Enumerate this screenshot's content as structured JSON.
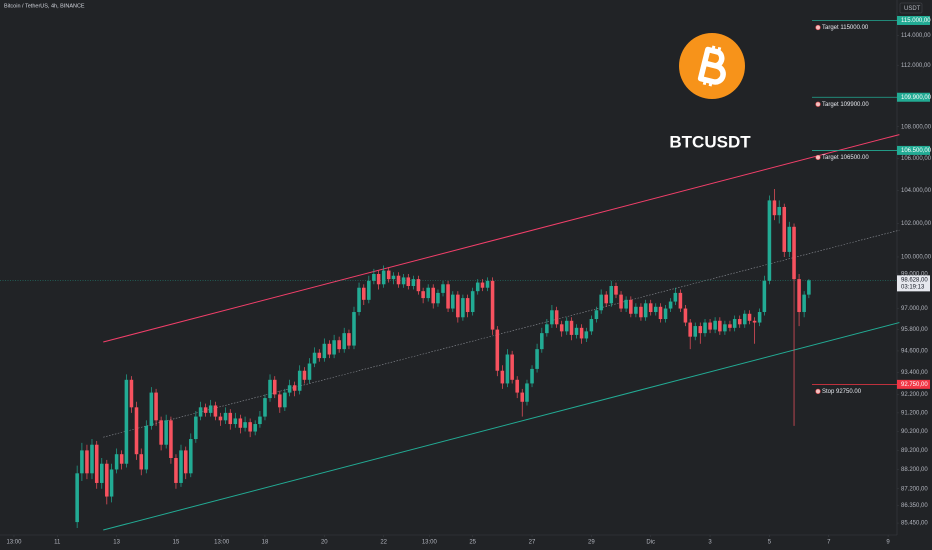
{
  "chart_data": {
    "type": "candlestick",
    "title": "Bitcoin / TetherUS, 4h, BINANCE",
    "currency": "USDT",
    "symbol": "BTCUSDT",
    "log_scale": true,
    "grid": false,
    "up_color": "#22ab94",
    "down_color": "#f7525f",
    "xlim": [
      9.07,
      39.3
    ],
    "ylim": [
      84850,
      116400
    ],
    "xticks": [
      {
        "value": 9.54,
        "label": "13:00"
      },
      11,
      13,
      15,
      {
        "value": 16.54,
        "label": "13:00"
      },
      18,
      20,
      22,
      {
        "value": 23.54,
        "label": "13:00"
      },
      25,
      27,
      29,
      {
        "value": 31,
        "label": "Dic"
      },
      {
        "value": 33,
        "label": "3"
      },
      {
        "value": 35,
        "label": "5"
      },
      {
        "value": 37,
        "label": "7"
      },
      {
        "value": 39,
        "label": "9"
      }
    ],
    "yticks": [
      {
        "value": 114000,
        "label": "114.000,00"
      },
      {
        "value": 112000,
        "label": "112.000,00"
      },
      {
        "value": 108000,
        "label": "108.000,00"
      },
      {
        "value": 106000,
        "label": "106.000,00"
      },
      {
        "value": 104000,
        "label": "104.000,00"
      },
      {
        "value": 102000,
        "label": "102.000,00"
      },
      {
        "value": 100000,
        "label": "100.000,00"
      },
      {
        "value": 99000,
        "label": "99.000,00"
      },
      {
        "value": 97000,
        "label": "97.000,00"
      },
      {
        "value": 95800,
        "label": "95.800,00"
      },
      {
        "value": 94600,
        "label": "94.600,00"
      },
      {
        "value": 93400,
        "label": "93.400,00"
      },
      {
        "value": 92200,
        "label": "92.200,00"
      },
      {
        "value": 91200,
        "label": "91.200,00"
      },
      {
        "value": 90200,
        "label": "90.200,00"
      },
      {
        "value": 89200,
        "label": "89.200,00"
      },
      {
        "value": 88200,
        "label": "88.200,00"
      },
      {
        "value": 87200,
        "label": "87.200,00"
      },
      {
        "value": 86350,
        "label": "86.350,00"
      },
      {
        "value": 85450,
        "label": "85.450,00"
      }
    ],
    "last_price": {
      "value": 98628,
      "label": "98.628,00",
      "countdown": "03:19:13",
      "color": "#22ab94"
    },
    "levels": [
      {
        "name": "Target 115000.00",
        "value": 115000,
        "axis_label": "115.000,00",
        "color": "#22ab94"
      },
      {
        "name": "Target 109900.00",
        "value": 109900,
        "axis_label": "109.900,00",
        "color": "#22ab94"
      },
      {
        "name": "Target 106500.00",
        "value": 106500,
        "axis_label": "106.500,00",
        "color": "#22ab94"
      },
      {
        "name": "Stop 92750.00",
        "value": 92750,
        "axis_label": "92.750,00",
        "color": "#f23645"
      }
    ],
    "trendlines": [
      {
        "color": "#f23f6a",
        "dash": false,
        "x": [
          12.55,
          39.38
        ],
        "y": [
          95100,
          107500
        ]
      },
      {
        "color": "#8a8d94",
        "dash": true,
        "x": [
          12.55,
          39.38
        ],
        "y": [
          89900,
          101600
        ]
      },
      {
        "color": "#22ab94",
        "dash": false,
        "x": [
          12.55,
          39.38
        ],
        "y": [
          85100,
          96200
        ]
      }
    ],
    "candles": [
      [
        11.67,
        85500,
        88400,
        85200,
        88000
      ],
      [
        11.83,
        88000,
        89600,
        87600,
        89200
      ],
      [
        12,
        89200,
        89500,
        87700,
        88000
      ],
      [
        12.17,
        88000,
        89800,
        87700,
        89500
      ],
      [
        12.33,
        89500,
        89700,
        87200,
        87500
      ],
      [
        12.5,
        87500,
        88800,
        87200,
        88500
      ],
      [
        12.67,
        88500,
        88700,
        86400,
        86800
      ],
      [
        12.83,
        86800,
        88500,
        86500,
        88200
      ],
      [
        13,
        88200,
        89300,
        88000,
        89000
      ],
      [
        13.17,
        89000,
        89200,
        88200,
        88500
      ],
      [
        13.33,
        88500,
        93300,
        88300,
        93000
      ],
      [
        13.5,
        93000,
        93200,
        91200,
        91500
      ],
      [
        13.67,
        91500,
        91800,
        88700,
        89000
      ],
      [
        13.83,
        89000,
        89300,
        87900,
        88200
      ],
      [
        14,
        88200,
        90800,
        88000,
        90500
      ],
      [
        14.17,
        90500,
        92600,
        90300,
        92300
      ],
      [
        14.33,
        92300,
        92500,
        90500,
        90800
      ],
      [
        14.5,
        90800,
        91000,
        89200,
        89500
      ],
      [
        14.67,
        89500,
        91100,
        89300,
        90800
      ],
      [
        14.83,
        90800,
        91000,
        88500,
        88800
      ],
      [
        15,
        88800,
        89000,
        87200,
        87500
      ],
      [
        15.17,
        87500,
        89500,
        87300,
        89200
      ],
      [
        15.33,
        89200,
        89400,
        87700,
        88000
      ],
      [
        15.5,
        88000,
        90100,
        87800,
        89800
      ],
      [
        15.67,
        89800,
        91300,
        89600,
        91000
      ],
      [
        15.83,
        91000,
        91800,
        90800,
        91500
      ],
      [
        16,
        91500,
        91700,
        91000,
        91200
      ],
      [
        16.17,
        91200,
        91900,
        91000,
        91600
      ],
      [
        16.33,
        91600,
        91800,
        90800,
        91000
      ],
      [
        16.5,
        91000,
        91200,
        90500,
        90800
      ],
      [
        16.67,
        90800,
        91500,
        90600,
        91200
      ],
      [
        16.83,
        91200,
        91400,
        90300,
        90600
      ],
      [
        17,
        90600,
        91200,
        90400,
        90900
      ],
      [
        17.17,
        90900,
        91100,
        90100,
        90400
      ],
      [
        17.33,
        90400,
        91000,
        90200,
        90700
      ],
      [
        17.5,
        90700,
        90900,
        89900,
        90200
      ],
      [
        17.67,
        90200,
        90800,
        90000,
        90600
      ],
      [
        17.83,
        90600,
        91300,
        90400,
        91000
      ],
      [
        18,
        91000,
        92200,
        90800,
        92000
      ],
      [
        18.17,
        92000,
        93300,
        91800,
        93000
      ],
      [
        18.33,
        93000,
        93200,
        92000,
        92200
      ],
      [
        18.5,
        92200,
        92400,
        91200,
        91500
      ],
      [
        18.67,
        91500,
        92500,
        91300,
        92300
      ],
      [
        18.83,
        92300,
        93000,
        92100,
        92700
      ],
      [
        19,
        92700,
        92900,
        92100,
        92400
      ],
      [
        19.17,
        92400,
        93800,
        92200,
        93500
      ],
      [
        19.33,
        93500,
        93700,
        92800,
        93000
      ],
      [
        19.5,
        93000,
        94200,
        92800,
        93900
      ],
      [
        19.67,
        93900,
        94800,
        93700,
        94500
      ],
      [
        19.83,
        94500,
        94700,
        94000,
        94200
      ],
      [
        20,
        94200,
        95300,
        94000,
        95000
      ],
      [
        20.17,
        95000,
        95200,
        94200,
        94400
      ],
      [
        20.33,
        94400,
        95500,
        94200,
        95200
      ],
      [
        20.5,
        95200,
        95400,
        94500,
        94700
      ],
      [
        20.67,
        94700,
        95900,
        94500,
        95600
      ],
      [
        20.83,
        95600,
        95800,
        94700,
        94900
      ],
      [
        21,
        94900,
        97100,
        94700,
        96800
      ],
      [
        21.17,
        96800,
        98500,
        96600,
        98200
      ],
      [
        21.33,
        98200,
        98400,
        97200,
        97500
      ],
      [
        21.5,
        97500,
        98900,
        97300,
        98600
      ],
      [
        21.67,
        98600,
        99300,
        98400,
        99000
      ],
      [
        21.83,
        99000,
        99200,
        98100,
        98400
      ],
      [
        22,
        98400,
        99500,
        98200,
        99200
      ],
      [
        22.17,
        99200,
        99400,
        98500,
        98700
      ],
      [
        22.33,
        98700,
        99100,
        98400,
        98900
      ],
      [
        22.5,
        98900,
        99100,
        98200,
        98400
      ],
      [
        22.67,
        98400,
        99000,
        98200,
        98800
      ],
      [
        22.83,
        98800,
        99000,
        98100,
        98300
      ],
      [
        23,
        98300,
        98900,
        98100,
        98700
      ],
      [
        23.17,
        98700,
        98900,
        97800,
        98000
      ],
      [
        23.33,
        98000,
        98200,
        97300,
        97600
      ],
      [
        23.5,
        97600,
        98400,
        97400,
        98200
      ],
      [
        23.67,
        98200,
        98400,
        97000,
        97300
      ],
      [
        23.83,
        97300,
        98100,
        97100,
        97900
      ],
      [
        24,
        97900,
        98600,
        97700,
        98400
      ],
      [
        24.17,
        98400,
        98600,
        96800,
        97000
      ],
      [
        24.33,
        97000,
        98000,
        96800,
        97800
      ],
      [
        24.5,
        97800,
        98000,
        96200,
        96500
      ],
      [
        24.67,
        96500,
        97800,
        96300,
        97600
      ],
      [
        24.83,
        97600,
        97800,
        96500,
        96800
      ],
      [
        25,
        96800,
        98200,
        96600,
        98000
      ],
      [
        25.17,
        98000,
        98700,
        97800,
        98500
      ],
      [
        25.33,
        98500,
        98700,
        98000,
        98200
      ],
      [
        25.5,
        98200,
        98800,
        98000,
        98600
      ],
      [
        25.67,
        98600,
        98800,
        95500,
        95800
      ],
      [
        25.83,
        95800,
        96000,
        93200,
        93500
      ],
      [
        26,
        93500,
        93800,
        92500,
        92800
      ],
      [
        26.17,
        92800,
        94700,
        92600,
        94400
      ],
      [
        26.33,
        94400,
        94600,
        92800,
        93000
      ],
      [
        26.5,
        93000,
        93200,
        92000,
        92300
      ],
      [
        26.67,
        92300,
        92500,
        91000,
        91800
      ],
      [
        26.83,
        91800,
        93000,
        91600,
        92800
      ],
      [
        27,
        92800,
        93800,
        92600,
        93600
      ],
      [
        27.17,
        93600,
        95000,
        93400,
        94700
      ],
      [
        27.33,
        94700,
        95900,
        94500,
        95600
      ],
      [
        27.5,
        95600,
        96400,
        95400,
        96100
      ],
      [
        27.67,
        96100,
        97200,
        95900,
        96900
      ],
      [
        27.83,
        96900,
        97100,
        95900,
        96100
      ],
      [
        28,
        96100,
        96300,
        95400,
        95700
      ],
      [
        28.17,
        95700,
        96500,
        95500,
        96300
      ],
      [
        28.33,
        96300,
        96500,
        95200,
        95500
      ],
      [
        28.5,
        95500,
        96100,
        95300,
        95900
      ],
      [
        28.67,
        95900,
        96100,
        95000,
        95300
      ],
      [
        28.83,
        95300,
        95900,
        95100,
        95700
      ],
      [
        29,
        95700,
        96600,
        95500,
        96400
      ],
      [
        29.17,
        96400,
        97100,
        96200,
        96900
      ],
      [
        29.33,
        96900,
        98100,
        96700,
        97800
      ],
      [
        29.5,
        97800,
        98000,
        97100,
        97300
      ],
      [
        29.67,
        97300,
        98600,
        97100,
        98300
      ],
      [
        29.83,
        98300,
        98500,
        97600,
        97800
      ],
      [
        30,
        97800,
        98000,
        96800,
        97000
      ],
      [
        30.17,
        97000,
        97700,
        96800,
        97500
      ],
      [
        30.33,
        97500,
        97700,
        96500,
        96700
      ],
      [
        30.5,
        96700,
        97300,
        96500,
        97100
      ],
      [
        30.67,
        97100,
        97300,
        96300,
        96500
      ],
      [
        30.83,
        96500,
        97500,
        96300,
        97300
      ],
      [
        31,
        97300,
        97500,
        96600,
        96800
      ],
      [
        31.17,
        96800,
        97300,
        96600,
        97100
      ],
      [
        31.33,
        97100,
        97300,
        96200,
        96400
      ],
      [
        31.5,
        96400,
        97200,
        96200,
        97000
      ],
      [
        31.67,
        97000,
        97600,
        96800,
        97400
      ],
      [
        31.83,
        97400,
        98200,
        97200,
        97900
      ],
      [
        32,
        97900,
        98100,
        96800,
        97000
      ],
      [
        32.17,
        97000,
        97200,
        96000,
        96200
      ],
      [
        32.33,
        96200,
        96400,
        94700,
        95400
      ],
      [
        32.5,
        95400,
        96200,
        95200,
        96000
      ],
      [
        32.67,
        96000,
        96200,
        95000,
        95600
      ],
      [
        32.83,
        95600,
        96400,
        95400,
        96200
      ],
      [
        33,
        96200,
        96400,
        95600,
        95800
      ],
      [
        33.17,
        95800,
        96500,
        95600,
        96300
      ],
      [
        33.33,
        96300,
        96500,
        95500,
        95700
      ],
      [
        33.5,
        95700,
        96300,
        95500,
        96100
      ],
      [
        33.67,
        96100,
        96300,
        95700,
        95900
      ],
      [
        33.83,
        95900,
        96600,
        95700,
        96400
      ],
      [
        34,
        96400,
        96600,
        95900,
        96100
      ],
      [
        34.17,
        96100,
        96900,
        95900,
        96700
      ],
      [
        34.33,
        96700,
        96900,
        96100,
        96300
      ],
      [
        34.5,
        96300,
        96500,
        95000,
        96200
      ],
      [
        34.67,
        96200,
        97000,
        96000,
        96800
      ],
      [
        34.83,
        96800,
        98900,
        96600,
        98600
      ],
      [
        35,
        98600,
        103700,
        98400,
        103400
      ],
      [
        35.17,
        103400,
        104100,
        102200,
        102500
      ],
      [
        35.33,
        102500,
        103400,
        102000,
        103000
      ],
      [
        35.5,
        103000,
        103200,
        100000,
        100300
      ],
      [
        35.67,
        100300,
        102100,
        100000,
        101800
      ],
      [
        35.83,
        101800,
        102000,
        90500,
        98700
      ],
      [
        36,
        98700,
        99000,
        96000,
        96800
      ],
      [
        36.17,
        96800,
        98000,
        96500,
        97800
      ],
      [
        36.33,
        97800,
        98700,
        97600,
        98628
      ]
    ]
  }
}
